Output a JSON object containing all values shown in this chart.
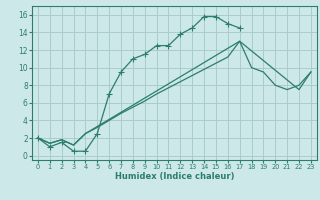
{
  "xlabel": "Humidex (Indice chaleur)",
  "bg_color": "#cce8e8",
  "grid_color": "#aacccc",
  "line_color": "#2d7d6e",
  "xlim": [
    -0.5,
    23.5
  ],
  "ylim": [
    -0.5,
    17
  ],
  "xticks": [
    0,
    1,
    2,
    3,
    4,
    5,
    6,
    7,
    8,
    9,
    10,
    11,
    12,
    13,
    14,
    15,
    16,
    17,
    18,
    19,
    20,
    21,
    22,
    23
  ],
  "yticks": [
    0,
    2,
    4,
    6,
    8,
    10,
    12,
    14,
    16
  ],
  "line1_x": [
    0,
    1,
    2,
    3,
    4,
    5,
    6,
    7,
    8,
    9,
    10,
    11,
    12,
    13,
    14,
    15,
    16,
    17
  ],
  "line1_y": [
    2,
    1,
    1.5,
    0.5,
    0.5,
    2.5,
    7,
    9.5,
    11,
    11.5,
    12.5,
    12.5,
    13.8,
    14.5,
    15.8,
    15.8,
    15,
    14.5
  ],
  "line2_x": [
    0,
    1,
    2,
    3,
    4,
    5,
    6,
    7,
    8,
    9,
    10,
    11,
    12,
    13,
    14,
    15,
    16,
    17,
    18,
    19,
    20,
    21,
    22,
    23
  ],
  "line2_y": [
    2,
    1.4,
    1.8,
    1.2,
    2.5,
    3.2,
    4.0,
    4.8,
    5.5,
    6.2,
    7.0,
    7.7,
    8.4,
    9.1,
    9.8,
    10.5,
    11.2,
    13,
    10,
    9.5,
    8.0,
    7.5,
    8.0,
    9.5
  ],
  "line3_x": [
    0,
    1,
    2,
    3,
    4,
    17,
    22,
    23
  ],
  "line3_y": [
    2,
    1.4,
    1.8,
    1.2,
    2.5,
    13,
    7.5,
    9.5
  ]
}
